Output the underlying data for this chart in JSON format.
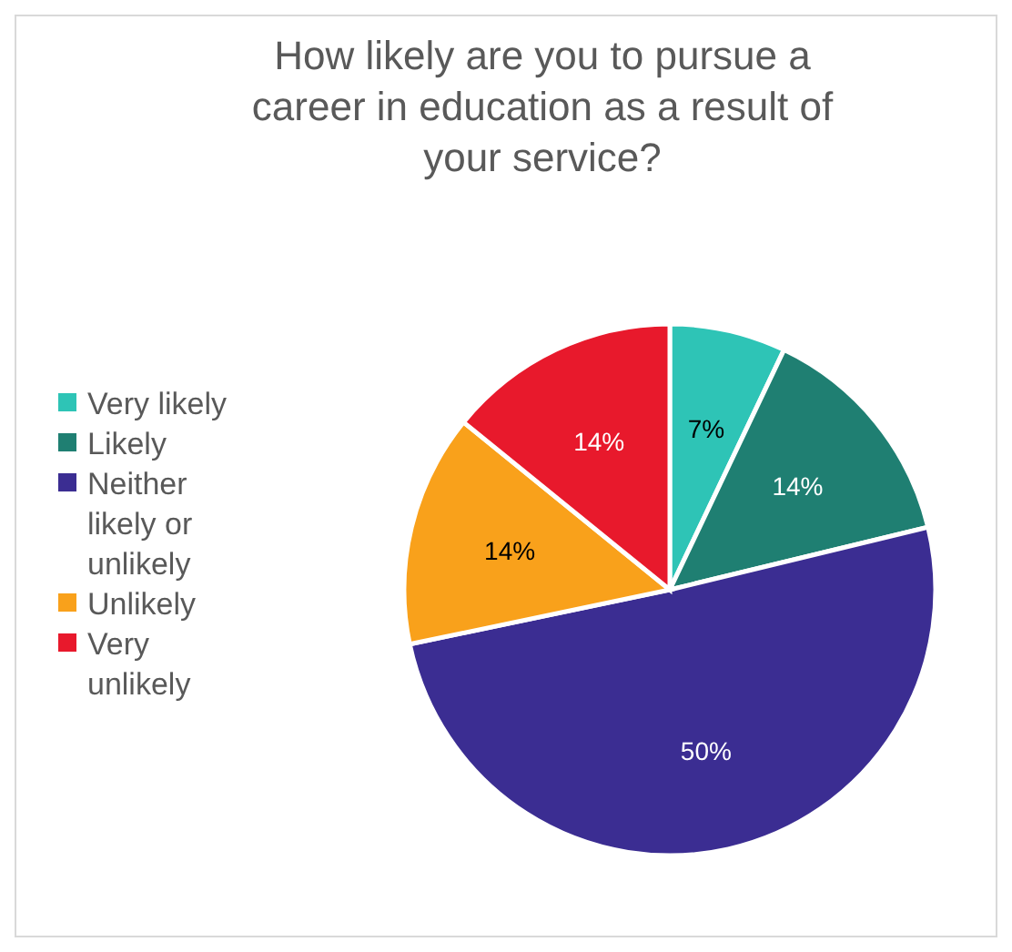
{
  "chart_data": {
    "type": "pie",
    "title": "How likely are you to pursue a career in education as a result of your service?",
    "categories": [
      "Very likely",
      "Likely",
      "Neither likely or unlikely",
      "Unlikely",
      "Very unlikely"
    ],
    "values": [
      7,
      14,
      50,
      14,
      14
    ],
    "colors": [
      "#2ec4b6",
      "#1f7f72",
      "#3b2d92",
      "#f9a11b",
      "#e8192c"
    ],
    "value_labels": [
      "7%",
      "14%",
      "50%",
      "14%",
      "14%"
    ],
    "legend": "left"
  }
}
